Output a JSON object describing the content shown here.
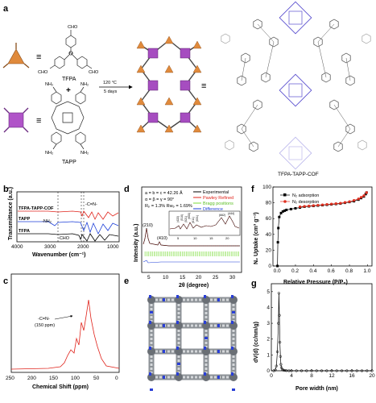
{
  "panels": {
    "a": {
      "label": "a",
      "monomer_top": "TFPA",
      "monomer_bottom": "TAPP",
      "plus": "+",
      "condition_temp": "120 °C",
      "condition_time": "5 days",
      "equals_top": "≡",
      "equals_bottom": "≡",
      "equals_product": "≡",
      "product": "TFPA-TAPP-COF",
      "group_cho": "CHO",
      "group_nh2": "NH₂",
      "group_nh": "NH",
      "group_hn": "HN",
      "atom_n": "N"
    },
    "b": {
      "label": "b",
      "traces": [
        "TFPA-TAPP-COF",
        "TAPP",
        "TFPA"
      ],
      "annot_nh2": "-NH₂",
      "annot_cn": "-C=N-",
      "annot_cho": "-CHO",
      "xlabel": "Wavenumber (cm⁻¹)",
      "ylabel": "Transmittance (a.u.)",
      "xticks": [
        "4000",
        "3000",
        "2000",
        "1000"
      ]
    },
    "c": {
      "label": "c",
      "annot": "-C=N-",
      "annot_sub": "(150 ppm)",
      "xlabel": "Chemical Shift (ppm)",
      "xticks": [
        "250",
        "200",
        "150",
        "100",
        "50",
        "0"
      ]
    },
    "d": {
      "label": "d",
      "cell1": "a = b = c = 42.26 Å",
      "cell2": "α = β = γ = 90°",
      "cell3": "Rₚ = 1.3% Rᴡₚ = 1.69%",
      "legend": [
        "Experimental",
        "Pawley Refined",
        "Bragg positions",
        "Difference"
      ],
      "peak_labels": [
        "(210)",
        "(410)",
        "(422)",
        "(510)",
        "(521)",
        "(600)",
        "(611)",
        "(631)",
        "(662)",
        "(444)"
      ],
      "xlabel": "2θ (degree)",
      "ylabel": "Intensity (a.u.)",
      "xticks": [
        "5",
        "10",
        "15",
        "20",
        "25",
        "30"
      ],
      "inset_xticks": [
        "5",
        "10",
        "15",
        "20"
      ]
    },
    "e": {
      "label": "e"
    },
    "f": {
      "label": "f",
      "legend": [
        "N₂ adsorption",
        "N₂ desorption"
      ],
      "xlabel": "Relative Pressure (P/P₀)",
      "ylabel": "N₂ Uptake (cm³ g⁻¹)",
      "xticks": [
        "0.0",
        "0.2",
        "0.4",
        "0.6",
        "0.8",
        "1.0"
      ],
      "yticks": [
        "0",
        "20",
        "40",
        "60",
        "80",
        "100"
      ]
    },
    "g": {
      "label": "g",
      "xlabel": "Pore width (nm)",
      "ylabel": "dV(d) (cc/nm/g)",
      "xticks": [
        "0",
        "4",
        "8",
        "12",
        "16",
        "20"
      ],
      "yticks": [
        "0",
        "1",
        "2",
        "3",
        "4",
        "5"
      ]
    }
  },
  "chart_data": [
    {
      "type": "line",
      "panel": "f",
      "xlabel": "Relative Pressure (P/P₀)",
      "ylabel": "N₂ Uptake (cm³ g⁻¹)",
      "xlim": [
        -0.05,
        1.05
      ],
      "ylim": [
        0,
        100
      ],
      "series": [
        {
          "name": "N₂ adsorption",
          "color": "#000000",
          "x": [
            0.0,
            0.005,
            0.01,
            0.02,
            0.04,
            0.06,
            0.08,
            0.1,
            0.15,
            0.2,
            0.25,
            0.3,
            0.35,
            0.4,
            0.45,
            0.5,
            0.55,
            0.6,
            0.65,
            0.7,
            0.75,
            0.8,
            0.85,
            0.9,
            0.93,
            0.96,
            0.98,
            0.99
          ],
          "y": [
            0,
            30,
            48,
            62,
            67,
            69,
            70,
            71,
            72,
            73,
            74,
            75,
            75.5,
            76,
            76.5,
            77,
            77.5,
            78,
            78.5,
            79,
            80,
            81,
            82,
            84,
            86,
            88,
            91,
            93
          ]
        },
        {
          "name": "N₂ desorption",
          "color": "#e03020",
          "x": [
            0.99,
            0.96,
            0.93,
            0.9,
            0.85,
            0.8,
            0.75,
            0.7,
            0.65,
            0.6,
            0.55,
            0.5,
            0.45,
            0.4,
            0.35,
            0.3,
            0.25
          ],
          "y": [
            93,
            89,
            87,
            85,
            83,
            81.5,
            80.5,
            79.5,
            79,
            78.5,
            78,
            77.5,
            77,
            76.5,
            76,
            75.5,
            75
          ]
        }
      ]
    },
    {
      "type": "line",
      "panel": "g",
      "xlabel": "Pore width (nm)",
      "ylabel": "dV(d) (cc/nm/g)",
      "xlim": [
        0,
        20
      ],
      "ylim": [
        0,
        5.5
      ],
      "series": [
        {
          "name": "",
          "color": "#000000",
          "x": [
            0.5,
            0.8,
            1.0,
            1.2,
            1.4,
            1.5,
            1.6,
            1.7,
            1.8,
            1.9,
            2.0,
            2.2,
            2.4,
            2.7,
            3.0,
            3.5,
            4,
            5,
            6,
            7,
            8,
            9,
            10,
            11,
            12,
            13,
            14,
            15,
            16,
            17,
            18,
            19,
            20
          ],
          "y": [
            0,
            0.05,
            0.3,
            1.2,
            3.0,
            4.9,
            3.5,
            1.8,
            0.9,
            0.4,
            0.2,
            0.08,
            0.04,
            0.02,
            0.01,
            0,
            0,
            0,
            0,
            0,
            0,
            0,
            0,
            0,
            0,
            0,
            0,
            0,
            0,
            0,
            0,
            0,
            0
          ]
        }
      ]
    }
  ]
}
